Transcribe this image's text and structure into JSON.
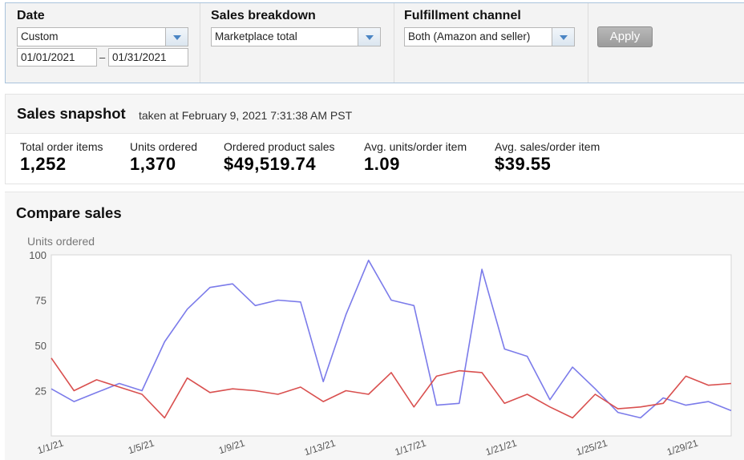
{
  "filters": {
    "date": {
      "label": "Date",
      "range_value": "Custom",
      "start": "01/01/2021",
      "separator": "–",
      "end": "01/31/2021"
    },
    "sales_breakdown": {
      "label": "Sales breakdown",
      "value": "Marketplace total"
    },
    "fulfillment": {
      "label": "Fulfillment channel",
      "value": "Both (Amazon and seller)"
    },
    "apply_label": "Apply"
  },
  "snapshot": {
    "title": "Sales snapshot",
    "taken": "taken at February 9, 2021 7:31:38 AM PST",
    "metrics": [
      {
        "label": "Total order items",
        "value": "1,252"
      },
      {
        "label": "Units ordered",
        "value": "1,370"
      },
      {
        "label": "Ordered product sales",
        "value": "$49,519.74"
      },
      {
        "label": "Avg. units/order item",
        "value": "1.09"
      },
      {
        "label": "Avg. sales/order item",
        "value": "$39.55"
      }
    ]
  },
  "compare": {
    "title": "Compare sales"
  },
  "chart_data": {
    "type": "line",
    "ylabel": "Units ordered",
    "ylim": [
      0,
      100
    ],
    "yticks": [
      25,
      50,
      75,
      100
    ],
    "grid": false,
    "x": [
      "1/1/21",
      "1/2/21",
      "1/3/21",
      "1/4/21",
      "1/5/21",
      "1/6/21",
      "1/7/21",
      "1/8/21",
      "1/9/21",
      "1/10/21",
      "1/11/21",
      "1/12/21",
      "1/13/21",
      "1/14/21",
      "1/15/21",
      "1/16/21",
      "1/17/21",
      "1/18/21",
      "1/19/21",
      "1/20/21",
      "1/21/21",
      "1/22/21",
      "1/23/21",
      "1/24/21",
      "1/25/21",
      "1/26/21",
      "1/27/21",
      "1/28/21",
      "1/29/21",
      "1/30/21",
      "1/31/21"
    ],
    "xtick_labels": [
      "1/1/21",
      "1/5/21",
      "1/9/21",
      "1/13/21",
      "1/17/21",
      "1/21/21",
      "1/25/21",
      "1/29/21"
    ],
    "series": [
      {
        "color": "#7b7bea",
        "values": [
          26,
          19,
          24,
          29,
          25,
          52,
          70,
          82,
          84,
          72,
          75,
          74,
          30,
          67,
          97,
          75,
          72,
          17,
          18,
          92,
          48,
          44,
          20,
          38,
          26,
          13,
          10,
          21,
          17,
          19,
          14
        ]
      },
      {
        "color": "#d9504f",
        "values": [
          43,
          25,
          31,
          27,
          23,
          10,
          32,
          24,
          26,
          25,
          23,
          27,
          19,
          25,
          23,
          35,
          16,
          33,
          36,
          35,
          18,
          23,
          16,
          10,
          23,
          15,
          16,
          18,
          33,
          28,
          29
        ]
      }
    ]
  }
}
